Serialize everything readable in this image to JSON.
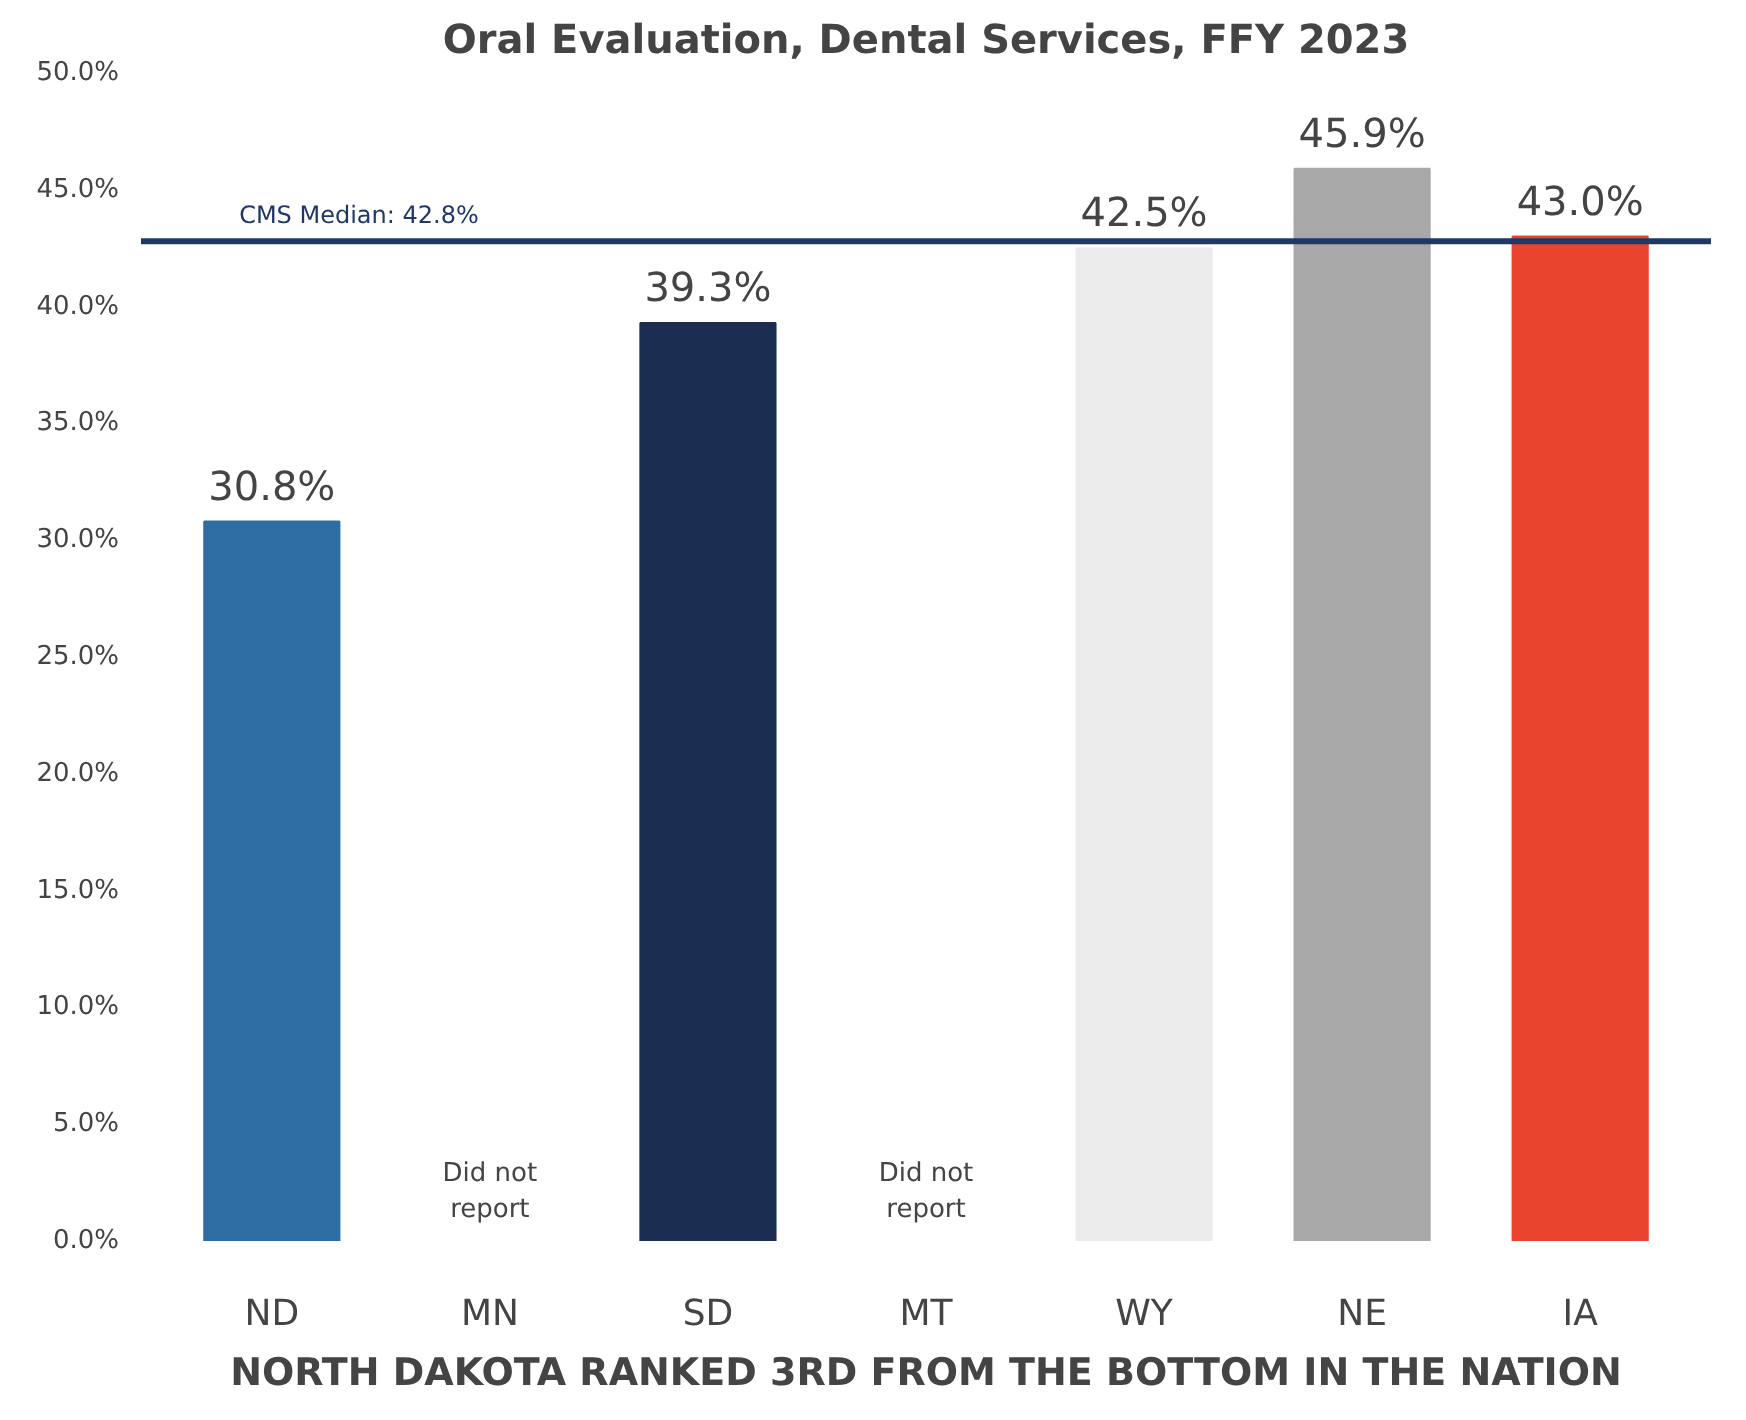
{
  "chart_data": {
    "type": "bar",
    "title": "Oral Evaluation, Dental Services, FFY 2023",
    "xlabel": "NORTH DAKOTA RANKED 3RD FROM THE BOTTOM IN THE NATION",
    "categories": [
      "ND",
      "MN",
      "SD",
      "MT",
      "WY",
      "NE",
      "IA"
    ],
    "values": [
      30.8,
      null,
      39.3,
      null,
      42.5,
      45.9,
      43.0
    ],
    "colors": [
      "#2e6da4",
      "#cccccc",
      "#1b2e52",
      "#cccccc",
      "#ececec",
      "#a8a8a8",
      "#e8442e"
    ],
    "value_labels": [
      "30.8%",
      null,
      "39.3%",
      null,
      "42.5%",
      "45.9%",
      "43.0%"
    ],
    "ylim": [
      0,
      50
    ],
    "yticks": [
      {
        "value": 0,
        "label": "0.0%"
      },
      {
        "value": 5,
        "label": "5.0%"
      },
      {
        "value": 10,
        "label": "10.0%"
      },
      {
        "value": 15,
        "label": "15.0%"
      },
      {
        "value": 20,
        "label": "20.0%"
      },
      {
        "value": 25,
        "label": "25.0%"
      },
      {
        "value": 30,
        "label": "30.0%"
      },
      {
        "value": 35,
        "label": "35.0%"
      },
      {
        "value": 40,
        "label": "40.0%"
      },
      {
        "value": 45,
        "label": "45.0%"
      },
      {
        "value": 50,
        "label": "50.0%"
      }
    ],
    "ref_lines": [
      {
        "axis": "y",
        "value": 42.8,
        "label": "CMS Median: 42.8%",
        "color": "#1f3864"
      }
    ],
    "annotations": [
      "Did not\nreport",
      "Did not\nreport"
    ],
    "grid": false
  }
}
